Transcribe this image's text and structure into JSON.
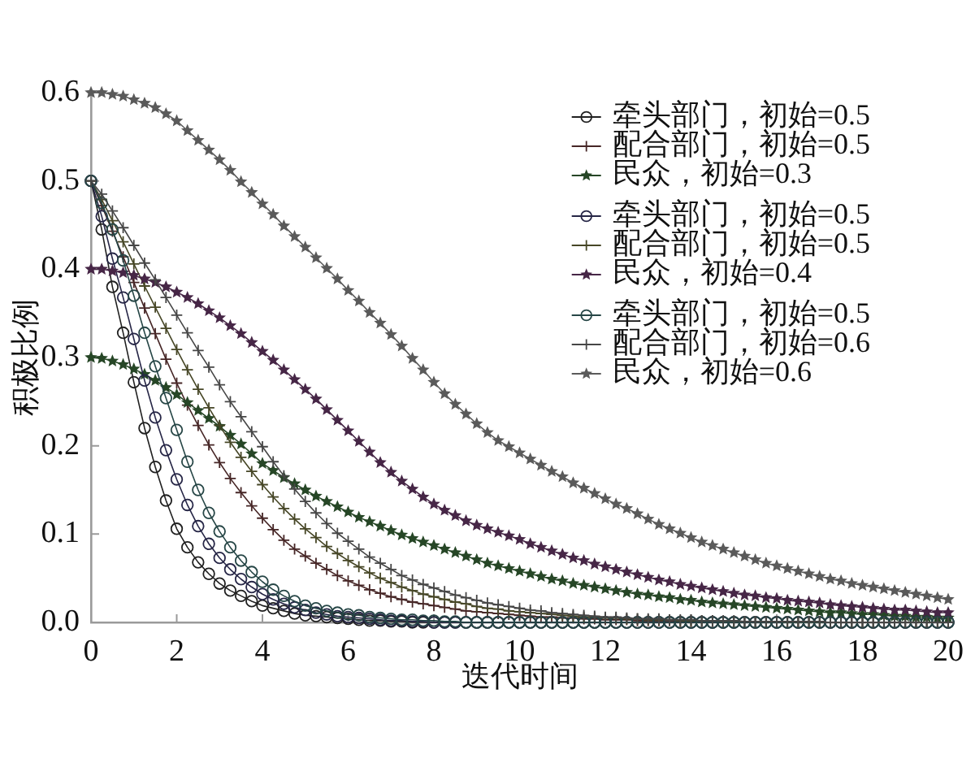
{
  "chart_data": {
    "type": "line",
    "xlabel": "迭代时间",
    "ylabel": "积极比例",
    "xlim": [
      0,
      20
    ],
    "ylim": [
      0,
      0.6
    ],
    "xticks": [
      0,
      2,
      4,
      6,
      8,
      10,
      12,
      14,
      16,
      18,
      20
    ],
    "yticks": [
      {
        "value": 0,
        "label": "0.0"
      },
      0.1,
      0.2,
      0.3,
      0.4,
      0.5,
      0.6
    ],
    "legend": "top right",
    "line_style": "solid",
    "x": [
      0,
      0.25,
      0.5,
      0.75,
      1,
      1.25,
      1.5,
      1.75,
      2,
      2.25,
      2.5,
      2.75,
      3,
      3.25,
      3.5,
      3.75,
      4,
      4.25,
      4.5,
      4.75,
      5,
      5.25,
      5.5,
      5.75,
      6,
      6.25,
      6.5,
      6.75,
      7,
      7.25,
      7.5,
      7.75,
      8,
      8.25,
      8.5,
      8.75,
      9,
      9.25,
      9.5,
      9.75,
      10,
      10.25,
      10.5,
      10.75,
      11,
      11.25,
      11.5,
      11.75,
      12,
      12.25,
      12.5,
      12.75,
      13,
      13.25,
      13.5,
      13.75,
      14,
      14.25,
      14.5,
      14.75,
      15,
      15.25,
      15.5,
      15.75,
      16,
      16.25,
      16.5,
      16.75,
      17,
      17.25,
      17.5,
      17.75,
      18,
      18.25,
      18.5,
      18.75,
      19,
      19.25,
      19.5,
      19.75,
      20
    ],
    "series": [
      {
        "name": "牵头部门，初始=0.5",
        "color": "#202020",
        "marker": "circle",
        "values": [
          0.5,
          0.445,
          0.38,
          0.328,
          0.272,
          0.22,
          0.176,
          0.138,
          0.106,
          0.085,
          0.068,
          0.055,
          0.044,
          0.036,
          0.03,
          0.024,
          0.019,
          0.016,
          0.013,
          0.01,
          0.008,
          0.007,
          0.006,
          0.005,
          0.004,
          0.003,
          0.002,
          0.002,
          0.001,
          0.001,
          0,
          0,
          0,
          0,
          0,
          0,
          0,
          0,
          0,
          0,
          0,
          0,
          0,
          0,
          0,
          0,
          0,
          0,
          0,
          0,
          0,
          0,
          0,
          0,
          0,
          0,
          0,
          0,
          0,
          0,
          0,
          0,
          0,
          0,
          0,
          0,
          0,
          0,
          0,
          0,
          0,
          0,
          0,
          0,
          0,
          0,
          0,
          0,
          0,
          0,
          0
        ]
      },
      {
        "name": "配合部门，初始=0.5",
        "color": "#462626",
        "marker": "cross",
        "values": [
          0.5,
          0.472,
          0.443,
          0.414,
          0.385,
          0.356,
          0.327,
          0.298,
          0.271,
          0.246,
          0.223,
          0.201,
          0.181,
          0.163,
          0.147,
          0.132,
          0.118,
          0.105,
          0.093,
          0.083,
          0.075,
          0.067,
          0.06,
          0.053,
          0.047,
          0.042,
          0.037,
          0.033,
          0.029,
          0.026,
          0.023,
          0.021,
          0.019,
          0.017,
          0.015,
          0.013,
          0.012,
          0.011,
          0.01,
          0.009,
          0.008,
          0.007,
          0.006,
          0.006,
          0.005,
          0.005,
          0.004,
          0.004,
          0.003,
          0.003,
          0.003,
          0.002,
          0.002,
          0.002,
          0.002,
          0.001,
          0.001,
          0.001,
          0.001,
          0.001,
          0.001,
          0,
          0,
          0,
          0,
          0,
          0,
          0,
          0,
          0,
          0,
          0,
          0,
          0,
          0,
          0,
          0,
          0,
          0,
          0,
          0
        ]
      },
      {
        "name": "民众，初始=0.3",
        "color": "#264626",
        "marker": "star",
        "values": [
          0.3,
          0.299,
          0.296,
          0.292,
          0.287,
          0.281,
          0.274,
          0.266,
          0.258,
          0.249,
          0.24,
          0.231,
          0.222,
          0.212,
          0.202,
          0.191,
          0.18,
          0.172,
          0.164,
          0.157,
          0.15,
          0.143,
          0.137,
          0.131,
          0.125,
          0.119,
          0.114,
          0.109,
          0.104,
          0.099,
          0.095,
          0.091,
          0.087,
          0.083,
          0.079,
          0.075,
          0.071,
          0.067,
          0.064,
          0.061,
          0.058,
          0.055,
          0.052,
          0.049,
          0.047,
          0.044,
          0.042,
          0.04,
          0.038,
          0.036,
          0.034,
          0.032,
          0.031,
          0.029,
          0.028,
          0.026,
          0.025,
          0.023,
          0.022,
          0.021,
          0.02,
          0.019,
          0.018,
          0.017,
          0.016,
          0.015,
          0.014,
          0.013,
          0.012,
          0.011,
          0.011,
          0.01,
          0.009,
          0.009,
          0.008,
          0.007,
          0.007,
          0.006,
          0.006,
          0.005,
          0.005
        ]
      },
      {
        "name": "牵头部门，初始=0.5",
        "color": "#262646",
        "marker": "circle",
        "values": [
          0.5,
          0.46,
          0.412,
          0.368,
          0.321,
          0.274,
          0.232,
          0.195,
          0.162,
          0.133,
          0.109,
          0.089,
          0.073,
          0.06,
          0.049,
          0.04,
          0.032,
          0.026,
          0.021,
          0.017,
          0.014,
          0.011,
          0.009,
          0.007,
          0.006,
          0.005,
          0.004,
          0.003,
          0.002,
          0.002,
          0.001,
          0.001,
          0,
          0,
          0,
          0,
          0,
          0,
          0,
          0,
          0,
          0,
          0,
          0,
          0,
          0,
          0,
          0,
          0,
          0,
          0,
          0,
          0,
          0,
          0,
          0,
          0,
          0,
          0,
          0,
          0,
          0,
          0,
          0,
          0,
          0,
          0,
          0,
          0,
          0,
          0,
          0,
          0,
          0,
          0,
          0,
          0,
          0,
          0,
          0,
          0
        ]
      },
      {
        "name": "配合部门，初始=0.5",
        "color": "#464626",
        "marker": "cross",
        "values": [
          0.5,
          0.479,
          0.455,
          0.431,
          0.406,
          0.381,
          0.357,
          0.333,
          0.309,
          0.286,
          0.264,
          0.243,
          0.223,
          0.204,
          0.187,
          0.171,
          0.156,
          0.142,
          0.129,
          0.117,
          0.106,
          0.096,
          0.086,
          0.078,
          0.07,
          0.063,
          0.056,
          0.05,
          0.045,
          0.04,
          0.036,
          0.032,
          0.029,
          0.026,
          0.023,
          0.021,
          0.018,
          0.016,
          0.015,
          0.013,
          0.012,
          0.011,
          0.01,
          0.009,
          0.008,
          0.007,
          0.006,
          0.006,
          0.005,
          0.005,
          0.004,
          0.004,
          0.003,
          0.003,
          0.003,
          0.002,
          0.002,
          0.002,
          0.002,
          0.001,
          0.001,
          0.001,
          0.001,
          0.001,
          0.001,
          0,
          0,
          0,
          0,
          0,
          0,
          0,
          0,
          0,
          0,
          0,
          0,
          0,
          0,
          0,
          0
        ]
      },
      {
        "name": "民众，初始=0.4",
        "color": "#462646",
        "marker": "star",
        "values": [
          0.4,
          0.4,
          0.398,
          0.396,
          0.393,
          0.389,
          0.385,
          0.38,
          0.374,
          0.368,
          0.361,
          0.353,
          0.345,
          0.336,
          0.327,
          0.317,
          0.307,
          0.297,
          0.286,
          0.275,
          0.264,
          0.253,
          0.241,
          0.229,
          0.217,
          0.205,
          0.193,
          0.181,
          0.17,
          0.16,
          0.151,
          0.142,
          0.134,
          0.127,
          0.121,
          0.115,
          0.11,
          0.106,
          0.102,
          0.098,
          0.094,
          0.089,
          0.085,
          0.081,
          0.077,
          0.073,
          0.07,
          0.066,
          0.063,
          0.06,
          0.057,
          0.054,
          0.051,
          0.048,
          0.046,
          0.043,
          0.041,
          0.039,
          0.037,
          0.035,
          0.033,
          0.031,
          0.03,
          0.028,
          0.027,
          0.025,
          0.024,
          0.023,
          0.022,
          0.02,
          0.019,
          0.018,
          0.017,
          0.016,
          0.015,
          0.014,
          0.014,
          0.013,
          0.012,
          0.011,
          0.011
        ]
      },
      {
        "name": "牵头部门，初始=0.5",
        "color": "#264646",
        "marker": "circle",
        "values": [
          0.5,
          0.475,
          0.445,
          0.41,
          0.37,
          0.328,
          0.29,
          0.254,
          0.218,
          0.182,
          0.15,
          0.124,
          0.103,
          0.085,
          0.07,
          0.057,
          0.046,
          0.037,
          0.03,
          0.024,
          0.019,
          0.016,
          0.013,
          0.011,
          0.009,
          0.008,
          0.006,
          0.005,
          0.004,
          0.003,
          0.003,
          0.002,
          0.002,
          0.001,
          0.001,
          0,
          0,
          0,
          0,
          0,
          0,
          0,
          0,
          0,
          0,
          0,
          0,
          0,
          0,
          0,
          0,
          0,
          0,
          0,
          0,
          0,
          0,
          0,
          0,
          0,
          0,
          0,
          0,
          0,
          0,
          0,
          0,
          0,
          0,
          0,
          0,
          0,
          0,
          0,
          0,
          0,
          0,
          0,
          0,
          0,
          0
        ]
      },
      {
        "name": "配合部门，初始=0.6",
        "color": "#464646",
        "marker": "cross",
        "values": [
          0.5,
          0.485,
          0.466,
          0.447,
          0.427,
          0.407,
          0.388,
          0.368,
          0.348,
          0.328,
          0.308,
          0.289,
          0.269,
          0.25,
          0.233,
          0.216,
          0.199,
          0.182,
          0.166,
          0.151,
          0.137,
          0.124,
          0.112,
          0.101,
          0.092,
          0.083,
          0.074,
          0.067,
          0.06,
          0.053,
          0.048,
          0.043,
          0.039,
          0.035,
          0.031,
          0.028,
          0.025,
          0.022,
          0.02,
          0.018,
          0.016,
          0.014,
          0.013,
          0.011,
          0.01,
          0.009,
          0.008,
          0.007,
          0.006,
          0.006,
          0.005,
          0.004,
          0.004,
          0.004,
          0.003,
          0.003,
          0.003,
          0.002,
          0.002,
          0.002,
          0.002,
          0.001,
          0.001,
          0.001,
          0.001,
          0.001,
          0.001,
          0.001,
          0.001,
          0,
          0,
          0,
          0,
          0,
          0,
          0,
          0,
          0,
          0,
          0,
          0
        ]
      },
      {
        "name": "民众，初始=0.6",
        "color": "#5a5a5a",
        "marker": "star",
        "values": [
          0.6,
          0.6,
          0.598,
          0.596,
          0.592,
          0.588,
          0.583,
          0.576,
          0.568,
          0.557,
          0.546,
          0.535,
          0.524,
          0.512,
          0.499,
          0.487,
          0.474,
          0.462,
          0.449,
          0.437,
          0.425,
          0.413,
          0.401,
          0.389,
          0.376,
          0.364,
          0.351,
          0.339,
          0.326,
          0.313,
          0.299,
          0.286,
          0.272,
          0.259,
          0.247,
          0.236,
          0.225,
          0.215,
          0.206,
          0.199,
          0.192,
          0.185,
          0.178,
          0.171,
          0.165,
          0.158,
          0.152,
          0.146,
          0.14,
          0.134,
          0.129,
          0.123,
          0.117,
          0.111,
          0.106,
          0.101,
          0.096,
          0.091,
          0.087,
          0.083,
          0.079,
          0.075,
          0.071,
          0.067,
          0.064,
          0.061,
          0.058,
          0.055,
          0.052,
          0.049,
          0.047,
          0.044,
          0.042,
          0.04,
          0.038,
          0.036,
          0.034,
          0.032,
          0.03,
          0.028,
          0.026
        ]
      }
    ]
  }
}
